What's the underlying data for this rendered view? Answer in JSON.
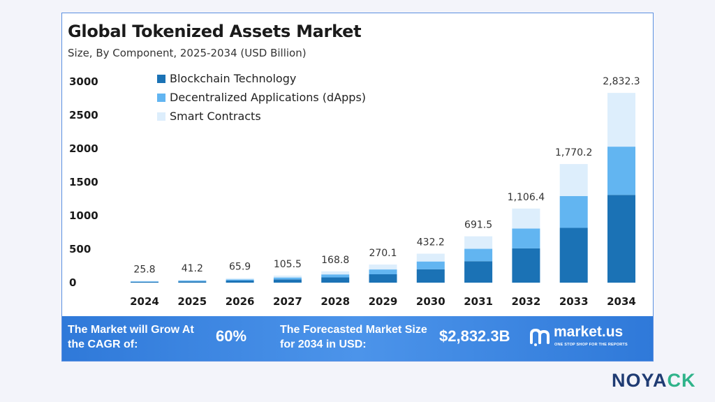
{
  "chart_data": {
    "type": "bar",
    "stacked": true,
    "title": "Global Tokenized Assets Market",
    "subtitle": "Size, By Component, 2025-2034 (USD Billion)",
    "categories": [
      "2024",
      "2025",
      "2026",
      "2027",
      "2028",
      "2029",
      "2030",
      "2031",
      "2032",
      "2033",
      "2034"
    ],
    "totals": [
      25.8,
      41.2,
      65.9,
      105.5,
      168.8,
      270.1,
      432.2,
      691.5,
      1106.4,
      1770.2,
      2832.3
    ],
    "total_labels": [
      "25.8",
      "41.2",
      "65.9",
      "105.5",
      "168.8",
      "270.1",
      "432.2",
      "691.5",
      "1,106.4",
      "1,770.2",
      "2,832.3"
    ],
    "series": [
      {
        "name": "Blockchain Technology",
        "color": "#1b72b5",
        "values": [
          12,
          19,
          31,
          49,
          78,
          125,
          200,
          320,
          511,
          818,
          1310
        ]
      },
      {
        "name": "Decentralized Applications (dApps)",
        "color": "#62b5f1",
        "values": [
          7,
          11,
          17,
          28,
          45,
          72,
          116,
          185,
          297,
          475,
          720
        ]
      },
      {
        "name": "Smart Contracts",
        "color": "#ddeefc",
        "values": [
          6.8,
          11.2,
          17.9,
          28.5,
          45.8,
          73.1,
          116.2,
          186.5,
          298.4,
          477.2,
          802.3
        ]
      }
    ],
    "ylim": [
      0,
      3000
    ],
    "yticks": [
      0,
      500,
      1000,
      1500,
      2000,
      2500,
      3000
    ],
    "ytick_labels": [
      "0",
      "500",
      "1000",
      "1500",
      "2000",
      "2500",
      "3000"
    ],
    "legend_position": "top-left",
    "grid": false
  },
  "banner": {
    "cagr_label": "The Market will Grow At the CAGR of:",
    "cagr_value": "60%",
    "size_label": "The Forecasted Market Size for 2034 in USD:",
    "size_value": "$2,832.3B",
    "brand_name": "market.us",
    "brand_tagline": "ONE STOP SHOP FOR THE REPORTS",
    "color": "#3f8ae3"
  },
  "watermark": {
    "text_main": "NOYA",
    "text_accent": "CK",
    "color": "#1f3b73",
    "accent_color": "#2fb38a"
  }
}
